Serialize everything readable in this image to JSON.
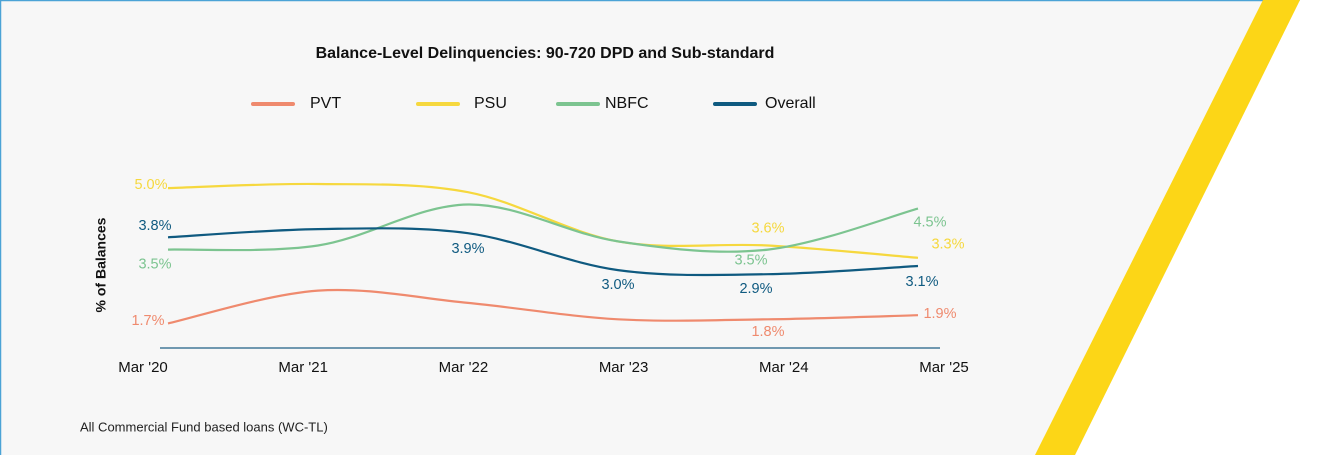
{
  "chart_data": {
    "type": "line",
    "title": "Balance-Level Delinquencies: 90-720 DPD and Sub-standard",
    "y_label": "% of Balances",
    "footnote": "All Commercial Fund based loans (WC-TL)",
    "categories": [
      "Mar '20",
      "Mar '21",
      "Mar '22",
      "Mar '23",
      "Mar '24",
      "Mar '25"
    ],
    "ylim": [
      1.1,
      5.7
    ],
    "legend": "top",
    "series": [
      {
        "name": "PVT",
        "color": "#ef8a6e",
        "values": [
          1.7,
          2.5,
          2.2,
          1.8,
          1.8,
          1.9
        ],
        "value_labels": [
          "1.7%",
          null,
          null,
          null,
          "1.8%",
          "1.9%"
        ]
      },
      {
        "name": "PSU",
        "color": "#f6d83e",
        "values": [
          5.0,
          5.1,
          4.9,
          3.7,
          3.6,
          3.3
        ],
        "value_labels": [
          "5.0%",
          null,
          null,
          null,
          "3.6%",
          "3.3%"
        ]
      },
      {
        "name": "NBFC",
        "color": "#7cc490",
        "values": [
          3.5,
          3.6,
          4.6,
          3.7,
          3.5,
          4.5
        ],
        "value_labels": [
          "3.5%",
          null,
          null,
          null,
          "3.5%",
          "4.5%"
        ]
      },
      {
        "name": "Overall",
        "color": "#0f5a80",
        "values": [
          3.8,
          4.0,
          3.9,
          3.0,
          2.9,
          3.1
        ],
        "value_labels": [
          "3.8%",
          null,
          "3.9%",
          "3.0%",
          "2.9%",
          "3.1%"
        ]
      }
    ]
  }
}
